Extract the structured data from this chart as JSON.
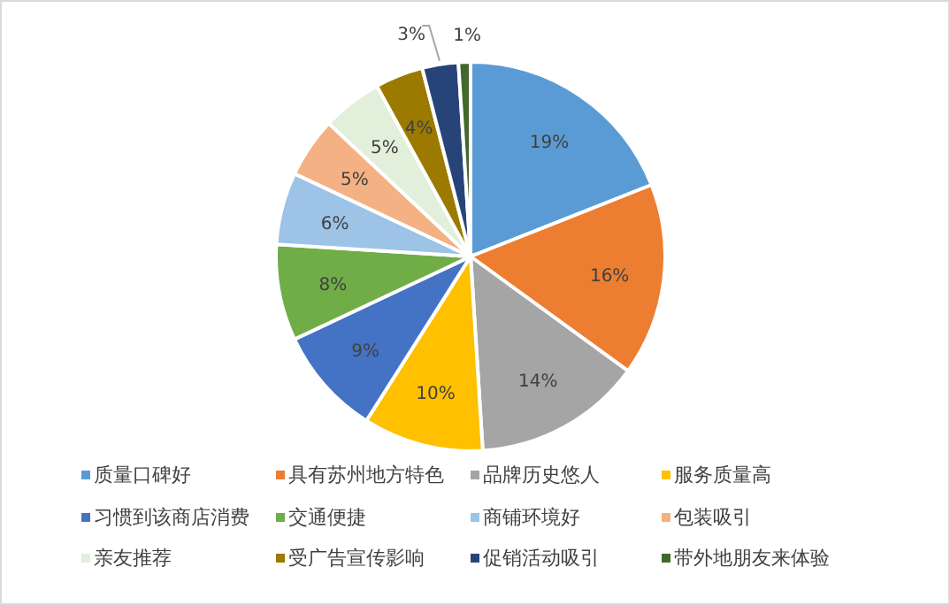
{
  "chart_data": {
    "type": "pie",
    "categories": [
      "质量口碑好",
      "具有苏州地方特色",
      "品牌历史悠人",
      "服务质量高",
      "习惯到该商店消费",
      "交通便捷",
      "商铺环境好",
      "包装吸引",
      "亲友推荐",
      "受广告宣传影响",
      "促销活动吸引",
      "带外地朋友来体验"
    ],
    "values": [
      19,
      16,
      14,
      10,
      9,
      8,
      6,
      5,
      5,
      4,
      3,
      1
    ],
    "value_labels": [
      "19%",
      "16%",
      "14%",
      "10%",
      "9%",
      "8%",
      "6%",
      "5%",
      "5%",
      "4%",
      "3%",
      "1%"
    ],
    "colors": [
      "#5b9bd5",
      "#ed7d31",
      "#a5a5a5",
      "#ffc000",
      "#4472c4",
      "#70ad47",
      "#9dc3e6",
      "#f4b183",
      "#e2efda",
      "#9c7a00",
      "#264478",
      "#43682b"
    ],
    "legend": "bottom"
  }
}
